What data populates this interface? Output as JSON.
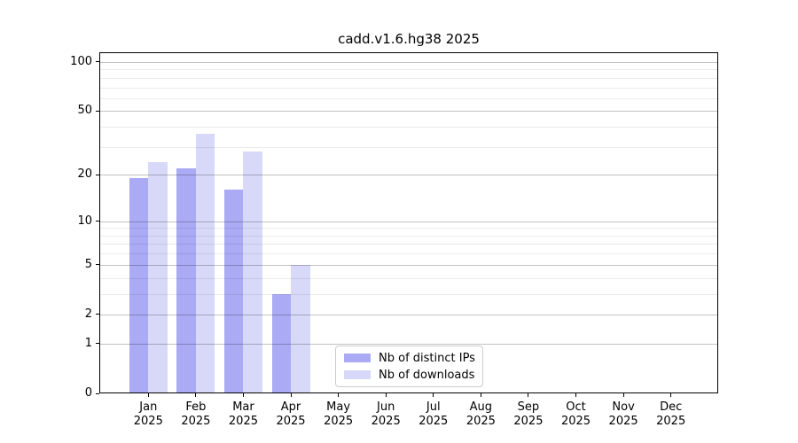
{
  "chart_data": {
    "type": "bar",
    "title": "cadd.v1.6.hg38 2025",
    "categories": [
      "Jan",
      "Feb",
      "Mar",
      "Apr",
      "May",
      "Jun",
      "Jul",
      "Aug",
      "Sep",
      "Oct",
      "Nov",
      "Dec"
    ],
    "year_label": "2025",
    "series": [
      {
        "name": "Nb of distinct IPs",
        "color": "#aaaaf5",
        "values": [
          19,
          22,
          16,
          3,
          0,
          0,
          0,
          0,
          0,
          0,
          0,
          0
        ]
      },
      {
        "name": "Nb of downloads",
        "color": "#d8d8f8",
        "values": [
          24,
          36,
          28,
          5,
          0,
          0,
          0,
          0,
          0,
          0,
          0,
          0
        ]
      }
    ],
    "y_axis": {
      "scale": "log10(value+1)",
      "ticks": [
        0,
        1,
        2,
        5,
        10,
        20,
        50,
        100
      ],
      "minor_gridlines": [
        3,
        4,
        6,
        7,
        8,
        9,
        30,
        40,
        60,
        70,
        80,
        90
      ],
      "range_top": 110
    },
    "x_axis": {
      "tick_label_format": "month newline year"
    },
    "legend": {
      "position": "lower center"
    },
    "grid": "on, drawn above bars"
  }
}
